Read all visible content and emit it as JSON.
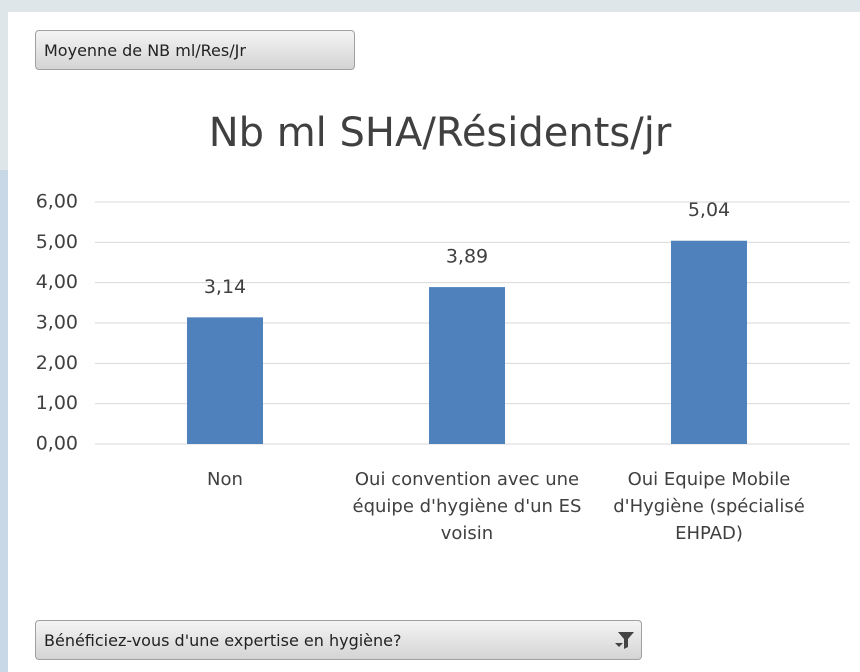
{
  "chart_data": {
    "type": "bar",
    "title": "Nb ml SHA/Résidents/jr",
    "categories": [
      "Non",
      "Oui convention avec une équipe d'hygiène d'un ES voisin",
      "Oui Equipe Mobile d'Hygiène (spécialisé EHPAD)"
    ],
    "values": [
      3.14,
      3.89,
      5.04
    ],
    "value_labels": [
      "3,14",
      "3,89",
      "5,04"
    ],
    "color": "#4f81bd",
    "ylim": [
      0,
      6
    ],
    "yticks": [
      {
        "value": 0,
        "label": "0,00"
      },
      {
        "value": 1,
        "label": "1,00"
      },
      {
        "value": 2,
        "label": "2,00"
      },
      {
        "value": 3,
        "label": "3,00"
      },
      {
        "value": 4,
        "label": "4,00"
      },
      {
        "value": 5,
        "label": "5,00"
      },
      {
        "value": 6,
        "label": "6,00"
      }
    ],
    "grid": true
  },
  "ui": {
    "value_field_button": "Moyenne de NB ml/Res/Jr",
    "axis_field_button": "Bénéficiez-vous d'une expertise en hygiène?"
  }
}
